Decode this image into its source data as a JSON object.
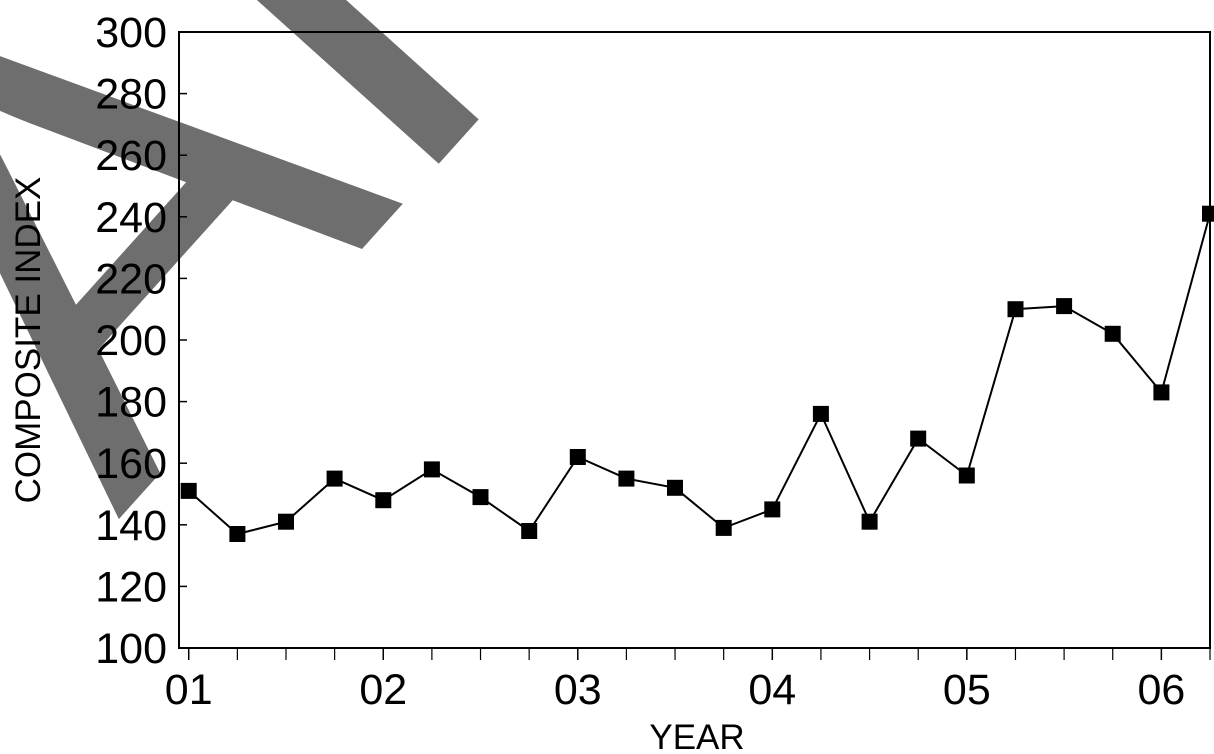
{
  "chart_data": {
    "type": "line",
    "title": "",
    "xlabel": "YEAR",
    "ylabel": "COMPOSITE INDEX",
    "ylim": [
      100,
      300
    ],
    "y_ticks": [
      100,
      120,
      140,
      160,
      180,
      200,
      220,
      240,
      260,
      280,
      300
    ],
    "y_tick_labels": [
      "100",
      "120",
      "140",
      "160",
      "180",
      "200",
      "220",
      "240",
      "260",
      "280",
      "300"
    ],
    "xlim": [
      0.95,
      6.25
    ],
    "x_major_ticks": [
      1,
      2,
      3,
      4,
      5,
      6
    ],
    "x_tick_labels": [
      "01",
      "02",
      "03",
      "04",
      "05",
      "06"
    ],
    "x_minor_ticks": [
      1.25,
      1.5,
      1.75,
      2.25,
      2.5,
      2.75,
      3.25,
      3.5,
      3.75,
      4.25,
      4.5,
      4.75,
      5.25,
      5.5,
      5.75,
      6.25
    ],
    "grid": false,
    "legend": "none",
    "marker": "square",
    "series": [
      {
        "x": [
          1.0,
          1.25,
          1.5,
          1.75,
          2.0,
          2.25,
          2.5,
          2.75,
          3.0,
          3.25,
          3.5,
          3.75,
          4.0,
          4.25,
          4.5,
          4.75,
          5.0,
          5.25,
          5.5,
          5.75,
          6.0,
          6.25
        ],
        "values": [
          151,
          137,
          141,
          155,
          148,
          158,
          149,
          138,
          162,
          155,
          152,
          139,
          145,
          176,
          141,
          168,
          156,
          210,
          211,
          202,
          183,
          241
        ]
      }
    ]
  },
  "watermark": {
    "text": "ARC",
    "color": "#6e6e6e"
  },
  "colors": {
    "line": "#000000",
    "marker": "#000000",
    "frame": "#000000",
    "background": "#ffffff"
  }
}
